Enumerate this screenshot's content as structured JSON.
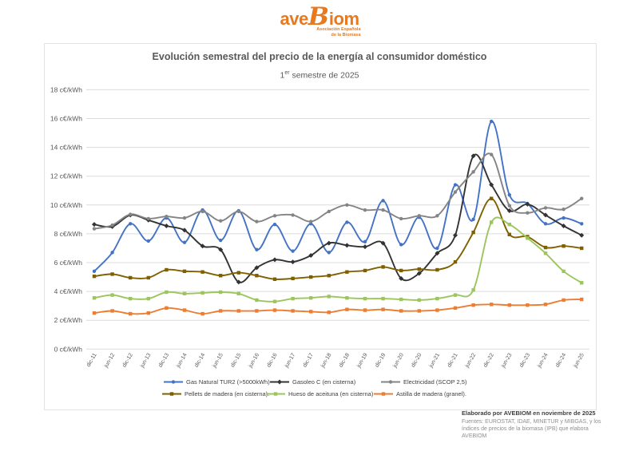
{
  "logo": {
    "part1": "ave",
    "part2": "B",
    "part3": "iom",
    "tagline_line1": "Asociación Española",
    "tagline_line2": "de la Biomasa",
    "color": "#E8791E"
  },
  "chart": {
    "title": "Evolución semestral del precio de la energía al consumidor doméstico",
    "subtitle_num": "1",
    "subtitle_sup": "er",
    "subtitle_rest": " semestre de 2025"
  },
  "footer": {
    "credit": "Elaborado por AVEBIOM en noviembre de 2025",
    "sources": "Fuentes: EUROSTAT, IDAE, MINETUR y MIBGAS, y los índices de precios de la biomasa (IPB) que elabora AVEBIOM"
  },
  "chart_data": {
    "type": "line",
    "title": "Evolución semestral del precio de la energía al consumidor doméstico",
    "subtitle": "1er semestre de 2025",
    "unit": "c€/kWh",
    "ylim": [
      0,
      18
    ],
    "ytick_step": 2,
    "ytick_suffix": " c€/kWh",
    "grid": true,
    "legend_position": "bottom",
    "categories": [
      "dic-11",
      "jun-12",
      "dic-12",
      "jun-13",
      "dic-13",
      "jun-14",
      "dic-14",
      "jun-15",
      "dic-15",
      "jun-16",
      "dic-16",
      "jun-17",
      "dic-17",
      "jun-18",
      "dic-18",
      "jun-19",
      "dic-19",
      "jun-20",
      "dic-20",
      "jun-21",
      "dic-21",
      "jun-22",
      "dic-22",
      "jun-23",
      "dic-23",
      "jun-24",
      "dic-24",
      "jun-25"
    ],
    "series": [
      {
        "name": "Gas Natural TUR2 (>5000kWh)",
        "color": "#4472C4",
        "marker": "circle",
        "values": [
          5.4,
          6.7,
          8.7,
          7.5,
          9.1,
          7.4,
          9.65,
          7.55,
          9.6,
          6.9,
          8.65,
          6.8,
          8.7,
          6.7,
          8.8,
          7.45,
          10.3,
          7.25,
          9.15,
          7.0,
          11.4,
          9.0,
          15.8,
          10.7,
          10.1,
          8.7,
          9.1,
          8.7
        ]
      },
      {
        "name": "Gasoleo C (en cisterna)",
        "color": "#333333",
        "marker": "diamond",
        "values": [
          8.65,
          8.5,
          9.3,
          8.95,
          8.55,
          8.25,
          7.15,
          6.9,
          4.65,
          5.65,
          6.2,
          6.05,
          6.5,
          7.35,
          7.2,
          7.1,
          7.35,
          4.9,
          5.25,
          6.65,
          7.9,
          13.4,
          11.4,
          9.6,
          10.05,
          9.3,
          8.55,
          7.9
        ]
      },
      {
        "name": "Electricidad (SCOP 2,5)",
        "color": "#848484",
        "marker": "circle",
        "values": [
          8.35,
          8.6,
          9.35,
          9.05,
          9.2,
          9.1,
          9.55,
          8.9,
          9.55,
          8.85,
          9.25,
          9.3,
          8.85,
          9.55,
          10.0,
          9.65,
          9.65,
          9.05,
          9.25,
          9.25,
          10.9,
          12.3,
          13.5,
          9.95,
          9.45,
          9.8,
          9.7,
          10.45
        ]
      },
      {
        "name": "Pellets de madera (en cisterna).",
        "color": "#7F6000",
        "marker": "square",
        "values": [
          5.05,
          5.2,
          4.95,
          4.95,
          5.5,
          5.4,
          5.35,
          5.1,
          5.3,
          5.1,
          4.85,
          4.9,
          5.0,
          5.1,
          5.35,
          5.45,
          5.7,
          5.45,
          5.55,
          5.5,
          6.05,
          8.1,
          10.45,
          7.95,
          7.8,
          7.05,
          7.15,
          7.0
        ]
      },
      {
        "name": "Hueso de aceituna (en cisterna)",
        "color": "#9CC65B",
        "marker": "square",
        "values": [
          3.55,
          3.75,
          3.5,
          3.5,
          3.95,
          3.85,
          3.9,
          3.95,
          3.85,
          3.4,
          3.3,
          3.5,
          3.55,
          3.65,
          3.55,
          3.5,
          3.5,
          3.45,
          3.4,
          3.5,
          3.75,
          4.1,
          8.8,
          8.65,
          7.7,
          6.65,
          5.4,
          4.6
        ]
      },
      {
        "name": "Astilla de madera (granel).",
        "color": "#ED7D31",
        "marker": "square",
        "values": [
          2.5,
          2.65,
          2.45,
          2.5,
          2.85,
          2.7,
          2.45,
          2.65,
          2.65,
          2.65,
          2.7,
          2.65,
          2.6,
          2.55,
          2.75,
          2.7,
          2.75,
          2.65,
          2.65,
          2.7,
          2.85,
          3.05,
          3.1,
          3.05,
          3.05,
          3.1,
          3.4,
          3.45
        ]
      }
    ]
  }
}
